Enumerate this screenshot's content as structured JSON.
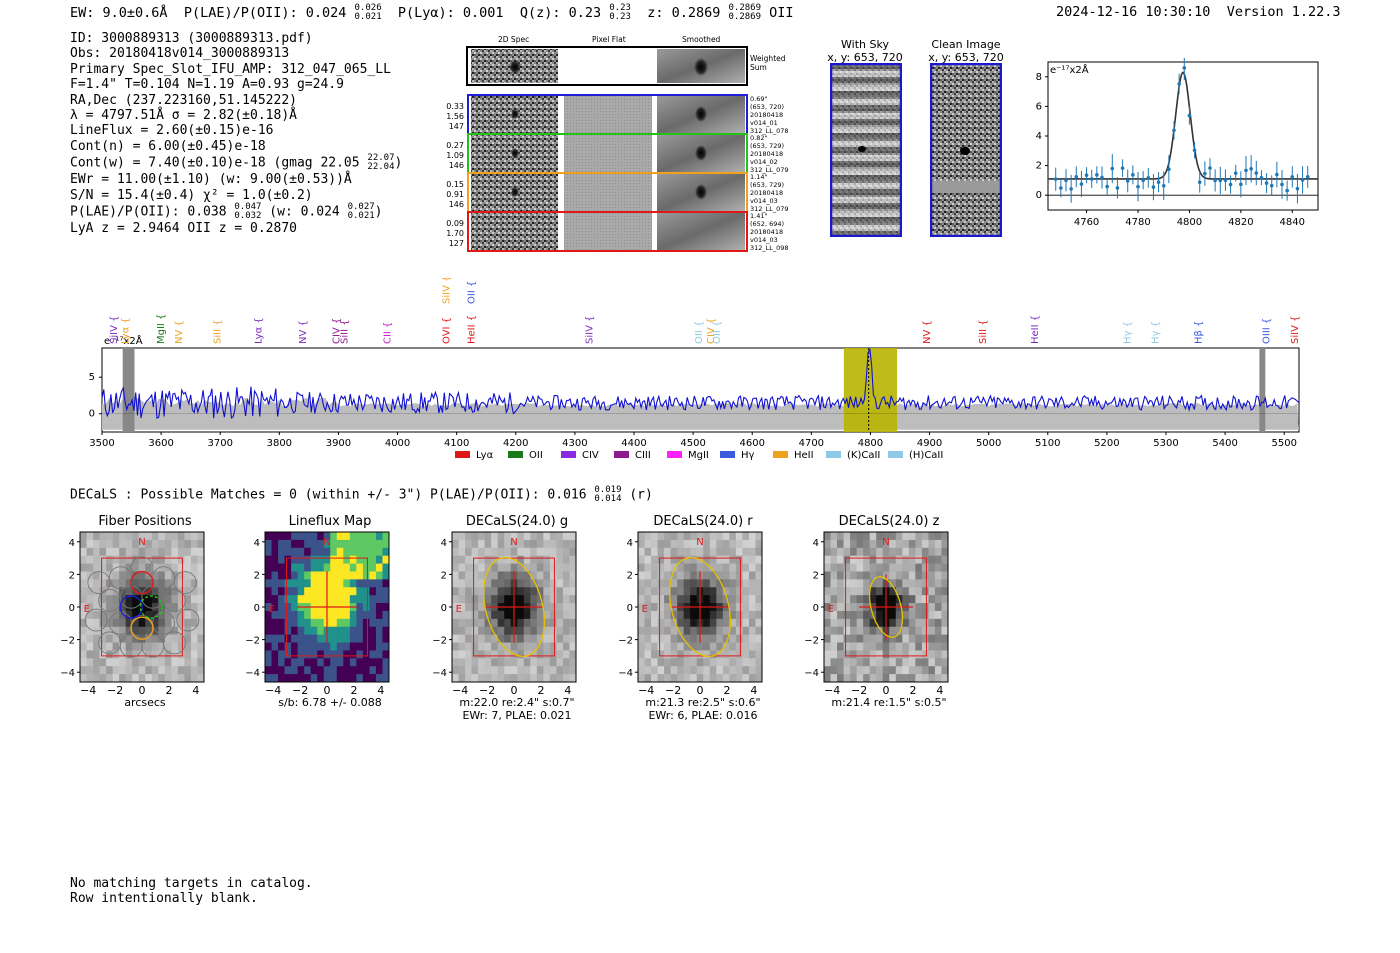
{
  "header": {
    "ew_label": "EW: 9.0±0.6Å",
    "plae_label": "P(LAE)/P(OII): 0.024",
    "plae_hi": "0.026",
    "plae_lo": "0.021",
    "plya_label": "P(Lyα): 0.001",
    "qz_label": "Q(z): 0.23",
    "qz_hi": "0.23",
    "qz_lo": "0.23",
    "z_label": "z: 0.2869",
    "z_hi": "0.2869",
    "z_lo": "0.2869",
    "z_line": "OII",
    "timestamp": "2024-12-16 10:30:10",
    "version": "Version 1.22.3"
  },
  "info": {
    "id": "ID: 3000889313 (3000889313.pdf)",
    "obs": "Obs: 20180418v014_3000889313",
    "primary": "Primary Spec_Slot_IFU_AMP: 312_047_065_LL",
    "fwhm": "F=1.4\"  T=0.104  N=1.19  A=0.93  g=24.9",
    "radec": "RA,Dec (237.223160,51.145222)",
    "lambda": "λ = 4797.51Å  σ = 2.82(±0.18)Å",
    "lineflux": "LineFlux = 2.60(±0.15)e-16",
    "contn": "Cont(n) = 6.00(±0.45)e-18",
    "contw": "Cont(w) = 7.40(±0.10)e-18 (gmag 22.05",
    "gmag_hi": "22.07",
    "gmag_lo": "22.04",
    "contw_close": ")",
    "ewr": "EWr = 11.00(±1.10) (w: 9.00(±0.53))Å",
    "sn": "S/N = 15.4(±0.4)  χ² = 1.0(±0.2)",
    "plae": "P(LAE)/P(OII): 0.038",
    "plae_hi": "0.047",
    "plae_lo": "0.032",
    "plae_w": "(w: 0.024",
    "plae_w_hi": "0.027",
    "plae_w_lo": "0.021",
    "plae_w_close": ")",
    "lya": "LyA z = 2.9464  OII z = 0.2870"
  },
  "cutouts": {
    "col_2d": "2D Spec",
    "col_flat": "Pixel Flat",
    "col_smooth": "Smoothed",
    "weighted": "Weighted Sum",
    "rows": [
      {
        "w1": "0.33",
        "w2": "1.56",
        "w3": "147",
        "color": "#1f1fd8",
        "info": [
          "0.69\"",
          "(653, 720)",
          "20180418",
          "v014_01",
          "312_LL_078"
        ]
      },
      {
        "w1": "0.27",
        "w2": "1.09",
        "w3": "146",
        "color": "#22c41a",
        "info": [
          "0.82\"",
          "(653, 729)",
          "20180418",
          "v014_02",
          "312_LL_079"
        ]
      },
      {
        "w1": "0.15",
        "w2": "0.91",
        "w3": "146",
        "color": "#f0a020",
        "info": [
          "1.14\"",
          "(653, 729)",
          "20180418",
          "v014_03",
          "312_LL_079"
        ]
      },
      {
        "w1": "0.09",
        "w2": "1.70",
        "w3": "127",
        "color": "#e01818",
        "info": [
          "1.41\"",
          "(652, 694)",
          "20180418",
          "v014_03",
          "312_LL_098"
        ]
      }
    ]
  },
  "sky_panels": {
    "with_sky_title": "With Sky",
    "with_sky_xy": "x, y: 653, 720",
    "clean_title": "Clean Image",
    "clean_xy": "x, y: 653, 720"
  },
  "zoom_plot": {
    "unit_label": "e⁻¹⁷x2Å",
    "y_ticks": [
      "0",
      "2",
      "4",
      "6",
      "8"
    ],
    "x_ticks": [
      "4760",
      "4780",
      "4800",
      "4820",
      "4840"
    ]
  },
  "full_spectrum": {
    "unit_label": "e⁻¹⁷x2Å",
    "y_ticks": [
      "0",
      "5"
    ],
    "x_ticks": [
      "3500",
      "3600",
      "3700",
      "3800",
      "3900",
      "4000",
      "4100",
      "4200",
      "4300",
      "4400",
      "4500",
      "4600",
      "4700",
      "4800",
      "4900",
      "5000",
      "5100",
      "5200",
      "5300",
      "5400",
      "5500"
    ],
    "lines": [
      {
        "name": "SiIV",
        "x": 3520,
        "color": "#7b2cbf"
      },
      {
        "name": "Lyα",
        "x": 3540,
        "color": "#f0a020"
      },
      {
        "name": "MgII",
        "x": 3600,
        "color": "#1a7a1a"
      },
      {
        "name": "NV",
        "x": 3630,
        "color": "#f0a020"
      },
      {
        "name": "SiII",
        "x": 3695,
        "color": "#f0a020"
      },
      {
        "name": "Lyα",
        "x": 3765,
        "color": "#7b2cbf"
      },
      {
        "name": "NV",
        "x": 3840,
        "color": "#7b2cbf"
      },
      {
        "name": "CIV",
        "x": 3897,
        "color": "#8e1a8e"
      },
      {
        "name": "SiII",
        "x": 3910,
        "color": "#8e1a8e"
      },
      {
        "name": "CII",
        "x": 3983,
        "color": "#c81ec8"
      },
      {
        "name": "OVI",
        "x": 4083,
        "color": "#e01818"
      },
      {
        "name": "HeII",
        "x": 4125,
        "color": "#e01818"
      },
      {
        "name": "SiIV",
        "x": 4325,
        "color": "#7b2cbf"
      },
      {
        "name": "OII",
        "x": 4510,
        "color": "#8ecae6"
      },
      {
        "name": "CIV",
        "x": 4530,
        "color": "#f0a020"
      },
      {
        "name": "OII",
        "x": 4540,
        "color": "#8ecae6"
      },
      {
        "name": "NV",
        "x": 4896,
        "color": "#e01818"
      },
      {
        "name": "SiII",
        "x": 4990,
        "color": "#e01818"
      },
      {
        "name": "HeII",
        "x": 5078,
        "color": "#7b2cbf"
      },
      {
        "name": "Hγ",
        "x": 5235,
        "color": "#8ecae6"
      },
      {
        "name": "Hγ",
        "x": 5282,
        "color": "#8ecae6"
      },
      {
        "name": "Hβ",
        "x": 5355,
        "color": "#3b5bdb"
      },
      {
        "name": "OIII",
        "x": 5470,
        "color": "#3b5bdb"
      },
      {
        "name": "SiIV",
        "x": 5518,
        "color": "#e01818"
      }
    ],
    "upper_lines": [
      {
        "name": "SiIV",
        "x": 4083,
        "color": "#f0a020"
      },
      {
        "name": "OII",
        "x": 4125,
        "color": "#3b5bdb"
      }
    ],
    "legend": [
      {
        "name": "Lyα",
        "color": "#e01818"
      },
      {
        "name": "OII",
        "color": "#1a7a1a"
      },
      {
        "name": "CIV",
        "color": "#8a2be2"
      },
      {
        "name": "CIII",
        "color": "#8e1a8e"
      },
      {
        "name": "MgII",
        "color": "#ff20ff"
      },
      {
        "name": "Hγ",
        "color": "#3b5bdb"
      },
      {
        "name": "HeII",
        "color": "#f0a020"
      },
      {
        "name": "(K)CaII",
        "color": "#8ecae6"
      },
      {
        "name": "(H)CaII",
        "color": "#8ecae6"
      }
    ]
  },
  "decals": {
    "summary": "DECaLS : Possible Matches = 0 (within +/- 3\")  P(LAE)/P(OII): 0.016",
    "summary_hi": "0.019",
    "summary_lo": "0.014",
    "summary_band": "(r)",
    "panels": [
      {
        "title": "Fiber Positions",
        "foot1": "arcsecs",
        "foot2": ""
      },
      {
        "title": "Lineflux Map",
        "foot1": "s/b: 6.78 +/- 0.088",
        "foot2": ""
      },
      {
        "title": "DECaLS(24.0) g",
        "foot1": "m:22.0  re:2.4\"  s:0.7\"",
        "foot2": "EWr: 7, PLAE: 0.021"
      },
      {
        "title": "DECaLS(24.0) r",
        "foot1": "m:21.3  re:2.5\"  s:0.6\"",
        "foot2": "EWr: 6, PLAE: 0.016"
      },
      {
        "title": "DECaLS(24.0) z",
        "foot1": "m:21.4  re:1.5\"  s:0.5\"",
        "foot2": ""
      }
    ],
    "ticks": [
      "4",
      "2",
      "0",
      "−2",
      "−4"
    ],
    "xticks": [
      "−4",
      "−2",
      "0",
      "2",
      "4"
    ],
    "n_label": "N",
    "e_label": "E"
  },
  "footer": {
    "line1": "No matching targets in catalog.",
    "line2": "Row intentionally blank."
  }
}
